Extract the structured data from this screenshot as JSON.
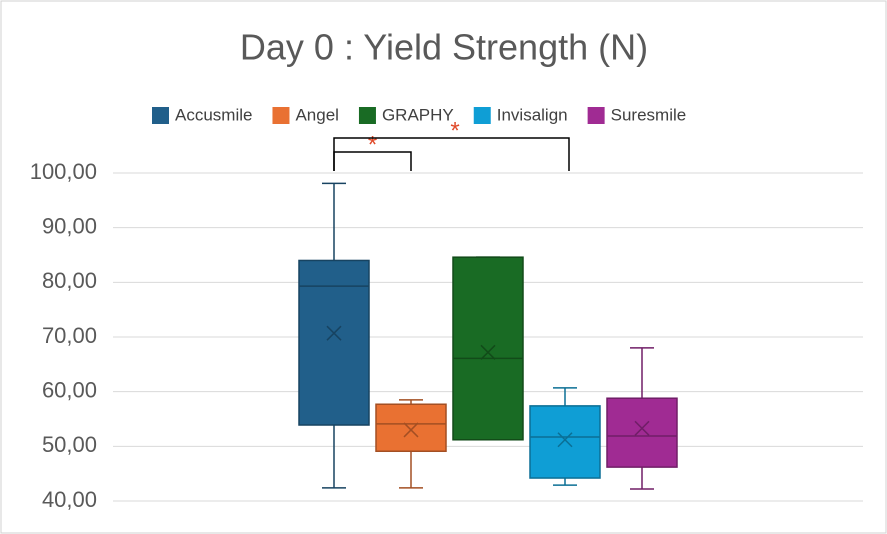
{
  "chart_data": {
    "type": "box",
    "title": "Day 0 : Yield Strength (N)",
    "ylim": [
      40,
      100
    ],
    "yticks": [
      {
        "value": 40,
        "label": "40,00"
      },
      {
        "value": 50,
        "label": "50,00"
      },
      {
        "value": 60,
        "label": "60,00"
      },
      {
        "value": 70,
        "label": "70,00"
      },
      {
        "value": 80,
        "label": "80,00"
      },
      {
        "value": 90,
        "label": "90,00"
      },
      {
        "value": 100,
        "label": "100,00"
      }
    ],
    "grid": true,
    "legend": "top",
    "series": [
      {
        "name": "Accusmile",
        "color": "#215f8a",
        "min": 42.4,
        "q1": 53.9,
        "median": 79.3,
        "q3": 84,
        "max": 98.1,
        "mean": 70.7
      },
      {
        "name": "Angel",
        "color": "#e97132",
        "min": 42.4,
        "q1": 49.1,
        "median": 54.1,
        "q3": 57.7,
        "max": 58.5,
        "mean": 53
      },
      {
        "name": "GRAPHY",
        "color": "#196b24",
        "min": 51.2,
        "q1": 51.2,
        "median": 66.1,
        "q3": 84.6,
        "max": 84.6,
        "mean": 67.2
      },
      {
        "name": "Invisalign",
        "color": "#0f9ed5",
        "min": 42.9,
        "q1": 44.2,
        "median": 51.7,
        "q3": 57.4,
        "max": 60.7,
        "mean": 51.2
      },
      {
        "name": "Suresmile",
        "color": "#a02b93",
        "min": 42.2,
        "q1": 46.2,
        "median": 51.9,
        "q3": 58.8,
        "max": 68,
        "mean": 53.3
      }
    ],
    "annotations": [
      "*",
      "*"
    ]
  }
}
